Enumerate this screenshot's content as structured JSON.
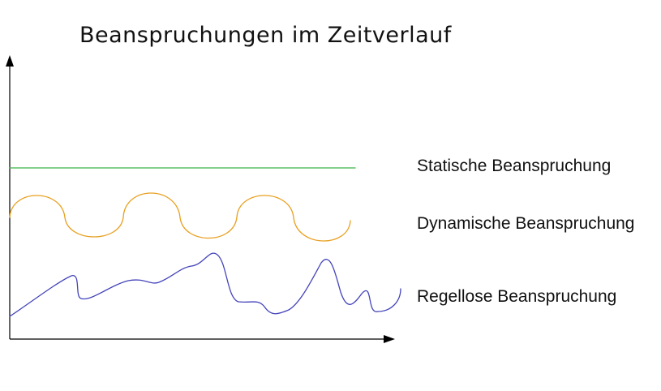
{
  "title": "Beanspruchungen im Zeitverlauf",
  "curves": [
    {
      "label": "Statische Beanspruchung",
      "color": "#3cb043"
    },
    {
      "label": "Dynamische Beanspruchung",
      "color": "#e8a020"
    },
    {
      "label": "Regellose Beanspruchung",
      "color": "#4444bb"
    }
  ]
}
